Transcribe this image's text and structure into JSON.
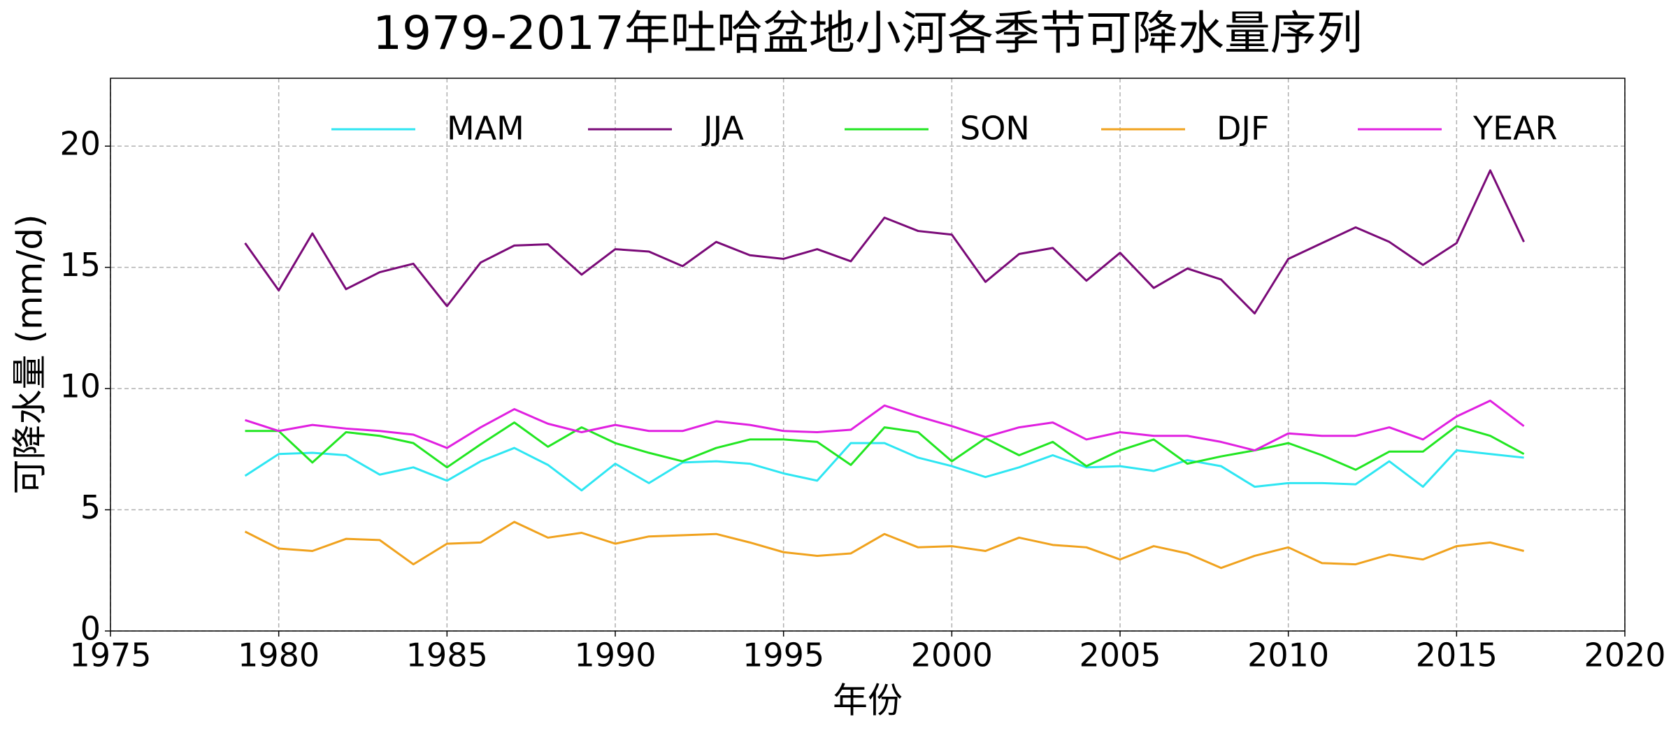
{
  "chart_data": {
    "type": "line",
    "title": "1979-2017年吐哈盆地小河各季节可降水量序列",
    "xlabel": "年份",
    "ylabel": "可降水量 (mm/d)",
    "x": [
      1979,
      1980,
      1981,
      1982,
      1983,
      1984,
      1985,
      1986,
      1987,
      1988,
      1989,
      1990,
      1991,
      1992,
      1993,
      1994,
      1995,
      1996,
      1997,
      1998,
      1999,
      2000,
      2001,
      2002,
      2003,
      2004,
      2005,
      2006,
      2007,
      2008,
      2009,
      2010,
      2011,
      2012,
      2013,
      2014,
      2015,
      2016,
      2017
    ],
    "series": [
      {
        "name": "MAM",
        "color": "#2ee6f2",
        "values": [
          6.4,
          7.3,
          7.35,
          7.25,
          6.45,
          6.75,
          6.2,
          7.0,
          7.55,
          6.85,
          5.8,
          6.9,
          6.1,
          6.95,
          7.0,
          6.9,
          6.5,
          6.2,
          7.75,
          7.75,
          7.15,
          6.8,
          6.35,
          6.75,
          7.25,
          6.75,
          6.8,
          6.6,
          7.05,
          6.8,
          5.95,
          6.1,
          6.1,
          6.05,
          7.0,
          5.95,
          7.45,
          7.3,
          7.15
        ]
      },
      {
        "name": "JJA",
        "color": "#7a0a78",
        "values": [
          16.0,
          14.05,
          16.4,
          14.1,
          14.8,
          15.15,
          13.4,
          15.2,
          15.9,
          15.95,
          14.7,
          15.75,
          15.65,
          15.05,
          16.05,
          15.5,
          15.35,
          15.75,
          15.25,
          17.05,
          16.5,
          16.35,
          14.4,
          15.55,
          15.8,
          14.45,
          15.6,
          14.15,
          14.95,
          14.5,
          13.1,
          15.35,
          16.0,
          16.65,
          16.05,
          15.1,
          16.0,
          19.0,
          16.05
        ]
      },
      {
        "name": "SON",
        "color": "#22e622",
        "values": [
          8.25,
          8.25,
          6.95,
          8.2,
          8.05,
          7.75,
          6.75,
          7.7,
          8.6,
          7.6,
          8.4,
          7.75,
          7.35,
          7.0,
          7.55,
          7.9,
          7.9,
          7.8,
          6.85,
          8.4,
          8.2,
          7.0,
          7.95,
          7.25,
          7.8,
          6.8,
          7.45,
          7.9,
          6.9,
          7.2,
          7.45,
          7.75,
          7.25,
          6.65,
          7.4,
          7.4,
          8.45,
          8.05,
          7.3
        ]
      },
      {
        "name": "DJF",
        "color": "#f0a21e",
        "values": [
          4.1,
          3.4,
          3.3,
          3.8,
          3.75,
          2.75,
          3.6,
          3.65,
          4.5,
          3.85,
          4.05,
          3.6,
          3.9,
          3.95,
          4.0,
          3.65,
          3.25,
          3.1,
          3.2,
          4.0,
          3.45,
          3.5,
          3.3,
          3.85,
          3.55,
          3.45,
          2.95,
          3.5,
          3.2,
          2.6,
          3.1,
          3.45,
          2.8,
          2.75,
          3.15,
          2.95,
          3.5,
          3.65,
          3.3
        ]
      },
      {
        "name": "YEAR",
        "color": "#e020e0",
        "values": [
          8.7,
          8.25,
          8.5,
          8.35,
          8.25,
          8.1,
          7.55,
          8.4,
          9.15,
          8.55,
          8.2,
          8.5,
          8.25,
          8.25,
          8.65,
          8.5,
          8.25,
          8.2,
          8.3,
          9.3,
          8.85,
          8.45,
          8.0,
          8.4,
          8.6,
          7.9,
          8.2,
          8.05,
          8.05,
          7.8,
          7.45,
          8.15,
          8.05,
          8.05,
          8.4,
          7.9,
          8.85,
          9.5,
          8.45
        ]
      }
    ],
    "xlim": [
      1975,
      2020
    ],
    "xticks": [
      1975,
      1980,
      1985,
      1990,
      1995,
      2000,
      2005,
      2010,
      2015,
      2020
    ],
    "ylim": [
      0,
      22.8
    ],
    "yticks": [
      0,
      5,
      10,
      15,
      20
    ],
    "grid": true,
    "legend": "upper right"
  }
}
